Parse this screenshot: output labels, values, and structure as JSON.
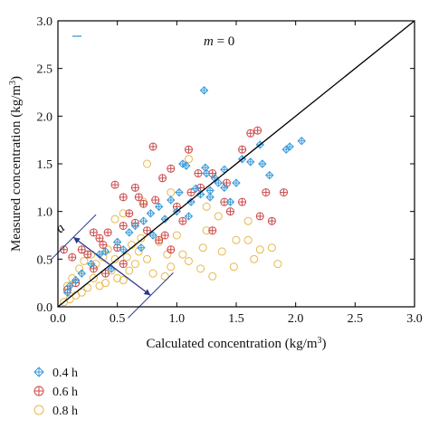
{
  "chart_data": {
    "type": "scatter",
    "title": "",
    "xlabel": "Calculated concentration (kg/m",
    "xlabel_sup": "3",
    "xlabel_tail": ")",
    "ylabel": "Measured concentration (kg/m",
    "ylabel_sup": "3",
    "ylabel_tail": ")",
    "xlim": [
      0,
      3.0
    ],
    "ylim": [
      0,
      3.0
    ],
    "xticks": [
      "0.0",
      "0.5",
      "1.0",
      "1.5",
      "2.0",
      "2.5",
      "3.0"
    ],
    "yticks": [
      "0.0",
      "0.5",
      "1.0",
      "1.5",
      "2.0",
      "2.5",
      "3.0"
    ],
    "grid": false,
    "legend_position": "below",
    "annotation": {
      "italic": "m",
      "rest": " = 0"
    },
    "reference_line": {
      "from": [
        0,
        0
      ],
      "to": [
        3.0,
        3.0
      ],
      "color": "#000000"
    },
    "band_label": "a",
    "band": [
      [
        0.13,
        0.73
      ],
      [
        0.78,
        0.12
      ]
    ],
    "series": [
      {
        "name": "0.4 h",
        "marker": "diamond-plus",
        "color": "#3a9ad9",
        "points": [
          [
            1.23,
            2.27
          ],
          [
            2.05,
            1.74
          ],
          [
            1.95,
            1.68
          ],
          [
            1.7,
            1.7
          ],
          [
            1.92,
            1.65
          ],
          [
            1.55,
            1.55
          ],
          [
            1.62,
            1.52
          ],
          [
            1.05,
            1.5
          ],
          [
            1.08,
            1.48
          ],
          [
            1.24,
            1.46
          ],
          [
            1.25,
            1.4
          ],
          [
            1.72,
            1.5
          ],
          [
            1.4,
            1.44
          ],
          [
            1.78,
            1.38
          ],
          [
            1.35,
            1.3
          ],
          [
            1.5,
            1.3
          ],
          [
            1.28,
            1.22
          ],
          [
            1.2,
            1.18
          ],
          [
            1.02,
            1.2
          ],
          [
            0.95,
            1.12
          ],
          [
            1.12,
            1.1
          ],
          [
            0.85,
            1.05
          ],
          [
            0.78,
            0.98
          ],
          [
            1.45,
            1.1
          ],
          [
            1.1,
            0.95
          ],
          [
            0.72,
            0.9
          ],
          [
            0.9,
            0.92
          ],
          [
            0.65,
            0.85
          ],
          [
            0.6,
            0.78
          ],
          [
            1.28,
            1.15
          ],
          [
            1.4,
            1.25
          ],
          [
            1.32,
            1.35
          ],
          [
            0.5,
            0.68
          ],
          [
            0.4,
            0.58
          ],
          [
            0.35,
            0.55
          ],
          [
            0.28,
            0.45
          ],
          [
            0.2,
            0.35
          ],
          [
            0.15,
            0.28
          ],
          [
            0.1,
            0.22
          ],
          [
            0.08,
            0.15
          ],
          [
            0.55,
            0.6
          ],
          [
            0.45,
            0.4
          ],
          [
            0.7,
            0.62
          ],
          [
            0.8,
            0.75
          ],
          [
            1.0,
            1.0
          ],
          [
            1.16,
            1.24
          ]
        ]
      },
      {
        "name": "0.6 h",
        "marker": "circle-plus",
        "color": "#cc4a4a",
        "points": [
          [
            0.8,
            1.68
          ],
          [
            1.62,
            1.82
          ],
          [
            1.68,
            1.85
          ],
          [
            1.1,
            1.65
          ],
          [
            1.55,
            1.65
          ],
          [
            0.48,
            1.28
          ],
          [
            0.55,
            1.15
          ],
          [
            0.65,
            1.25
          ],
          [
            0.72,
            1.08
          ],
          [
            0.88,
            1.35
          ],
          [
            0.95,
            1.45
          ],
          [
            1.18,
            1.4
          ],
          [
            1.3,
            1.4
          ],
          [
            1.42,
            1.3
          ],
          [
            1.2,
            1.25
          ],
          [
            1.75,
            1.2
          ],
          [
            1.9,
            1.2
          ],
          [
            1.8,
            0.9
          ],
          [
            1.7,
            0.95
          ],
          [
            1.55,
            1.1
          ],
          [
            1.4,
            1.1
          ],
          [
            1.45,
            1.0
          ],
          [
            1.3,
            0.8
          ],
          [
            0.95,
            0.6
          ],
          [
            0.9,
            0.75
          ],
          [
            0.85,
            0.7
          ],
          [
            0.6,
            0.98
          ],
          [
            0.65,
            0.88
          ],
          [
            0.55,
            0.85
          ],
          [
            0.3,
            0.78
          ],
          [
            0.35,
            0.72
          ],
          [
            0.42,
            0.78
          ],
          [
            0.2,
            0.6
          ],
          [
            0.05,
            0.6
          ],
          [
            0.12,
            0.52
          ],
          [
            0.25,
            0.55
          ],
          [
            0.38,
            0.65
          ],
          [
            0.5,
            0.62
          ],
          [
            0.75,
            0.8
          ],
          [
            1.0,
            1.05
          ],
          [
            1.05,
            0.9
          ],
          [
            1.12,
            1.2
          ],
          [
            0.3,
            0.4
          ],
          [
            0.4,
            0.35
          ],
          [
            0.55,
            0.45
          ],
          [
            0.15,
            0.25
          ],
          [
            0.08,
            0.18
          ],
          [
            0.68,
            1.15
          ],
          [
            0.82,
            1.12
          ]
        ]
      },
      {
        "name": "0.8 h",
        "marker": "circle",
        "color": "#e6b84a",
        "points": [
          [
            0.75,
            1.5
          ],
          [
            1.1,
            1.55
          ],
          [
            0.72,
            1.1
          ],
          [
            1.25,
            0.8
          ],
          [
            1.5,
            0.7
          ],
          [
            1.6,
            0.7
          ],
          [
            1.8,
            0.62
          ],
          [
            1.7,
            0.6
          ],
          [
            1.85,
            0.45
          ],
          [
            1.65,
            0.5
          ],
          [
            1.48,
            0.42
          ],
          [
            1.3,
            0.32
          ],
          [
            1.2,
            0.4
          ],
          [
            1.1,
            0.48
          ],
          [
            1.05,
            0.55
          ],
          [
            0.95,
            0.42
          ],
          [
            0.9,
            0.32
          ],
          [
            0.8,
            0.35
          ],
          [
            0.75,
            0.5
          ],
          [
            0.65,
            0.45
          ],
          [
            0.6,
            0.38
          ],
          [
            0.55,
            0.28
          ],
          [
            0.5,
            0.3
          ],
          [
            0.45,
            0.38
          ],
          [
            0.4,
            0.25
          ],
          [
            0.35,
            0.22
          ],
          [
            0.3,
            0.3
          ],
          [
            0.25,
            0.2
          ],
          [
            0.2,
            0.15
          ],
          [
            0.15,
            0.12
          ],
          [
            0.1,
            0.08
          ],
          [
            0.05,
            0.05
          ],
          [
            0.18,
            0.4
          ],
          [
            0.22,
            0.48
          ],
          [
            0.28,
            0.55
          ],
          [
            0.32,
            0.45
          ],
          [
            0.38,
            0.52
          ],
          [
            0.42,
            0.6
          ],
          [
            0.48,
            0.5
          ],
          [
            0.12,
            0.3
          ],
          [
            0.08,
            0.22
          ],
          [
            0.62,
            0.65
          ],
          [
            0.7,
            0.72
          ],
          [
            0.85,
            0.68
          ],
          [
            1.0,
            0.75
          ],
          [
            0.58,
            0.52
          ],
          [
            1.38,
            0.58
          ],
          [
            1.22,
            0.62
          ],
          [
            0.92,
            0.55
          ],
          [
            0.68,
            0.58
          ],
          [
            1.6,
            0.9
          ],
          [
            0.48,
            0.92
          ],
          [
            0.55,
            0.98
          ],
          [
            0.95,
            1.2
          ],
          [
            1.35,
            0.95
          ],
          [
            1.25,
            1.05
          ]
        ]
      }
    ]
  }
}
